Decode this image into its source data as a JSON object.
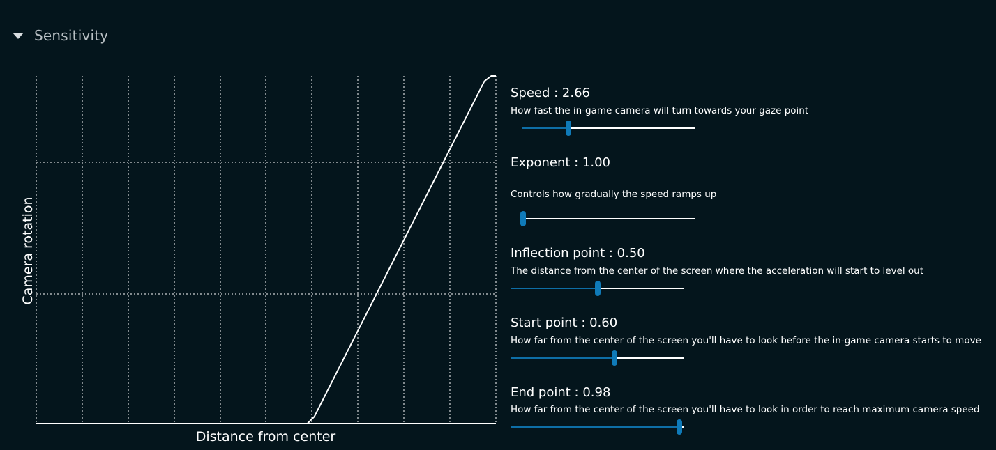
{
  "section": {
    "title": "Sensitivity"
  },
  "graph": {
    "xlabel": "Distance from center",
    "ylabel": "Camera rotation",
    "curve_color": "#ffffff",
    "grid_color": "#ffffff",
    "curve": [
      [
        0,
        0
      ],
      [
        0.59,
        0
      ],
      [
        0.605,
        0.02
      ],
      [
        0.975,
        0.985
      ],
      [
        0.99,
        1.0
      ],
      [
        1.0,
        1.0
      ]
    ]
  },
  "sliders": [
    {
      "title": "Speed : 2.66",
      "description": "How fast the in-game camera will turn towards your gaze point",
      "fraction": 0.27
    },
    {
      "title": "Exponent : 1.00",
      "description": "Controls how gradually the speed ramps up",
      "fraction": 0.0
    },
    {
      "title": "Inflection point : 0.50",
      "description": "The distance from the center of the screen where the acceleration will start to level out",
      "fraction": 0.5
    },
    {
      "title": "Start point : 0.60",
      "description": "How far from the center of the screen you'll have to look before the in-game camera starts to move",
      "fraction": 0.6
    },
    {
      "title": "End point : 0.98",
      "description": "How far from the center of the screen you'll have to look in order to reach maximum camera speed",
      "fraction": 0.97
    }
  ],
  "colors": {
    "background": "#04151c",
    "accent": "#0f7ab8",
    "accent_fill": "#0e6ea6"
  }
}
